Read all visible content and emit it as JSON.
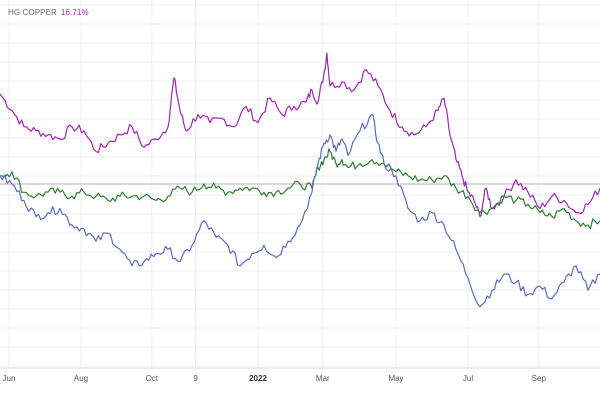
{
  "legend": {
    "symbol": "HG COPPER",
    "value": "16.71%",
    "value_color": "#9c27b0"
  },
  "chart_data": {
    "type": "line",
    "grid": true,
    "legend_placement": "top-left",
    "xlabel": "",
    "ylabel": "",
    "x_ticks": [
      {
        "label": "Jun",
        "t": 0.015,
        "bold": false
      },
      {
        "label": "Aug",
        "t": 0.135,
        "bold": false
      },
      {
        "label": "Oct",
        "t": 0.253,
        "bold": false
      },
      {
        "label": "9",
        "t": 0.326,
        "bold": false
      },
      {
        "label": "2022",
        "t": 0.43,
        "bold": true
      },
      {
        "label": "Mar",
        "t": 0.538,
        "bold": false
      },
      {
        "label": "May",
        "t": 0.66,
        "bold": false
      },
      {
        "label": "Jul",
        "t": 0.78,
        "bold": false
      },
      {
        "label": "Sep",
        "t": 0.898,
        "bold": false
      }
    ],
    "baseline": 0,
    "ylim": [
      -45,
      45
    ],
    "series": [
      {
        "color": "#9c27b0",
        "points": [
          [
            0.0,
            22
          ],
          [
            0.02,
            18
          ],
          [
            0.04,
            14
          ],
          [
            0.06,
            13
          ],
          [
            0.08,
            12
          ],
          [
            0.1,
            11
          ],
          [
            0.12,
            14
          ],
          [
            0.14,
            13
          ],
          [
            0.16,
            8
          ],
          [
            0.18,
            10
          ],
          [
            0.2,
            12
          ],
          [
            0.22,
            14
          ],
          [
            0.24,
            9
          ],
          [
            0.26,
            11
          ],
          [
            0.28,
            14
          ],
          [
            0.29,
            26
          ],
          [
            0.3,
            18
          ],
          [
            0.31,
            13
          ],
          [
            0.33,
            17
          ],
          [
            0.35,
            15
          ],
          [
            0.37,
            16
          ],
          [
            0.39,
            14
          ],
          [
            0.41,
            19
          ],
          [
            0.43,
            15
          ],
          [
            0.45,
            21
          ],
          [
            0.47,
            17
          ],
          [
            0.49,
            19
          ],
          [
            0.51,
            20
          ],
          [
            0.52,
            23
          ],
          [
            0.53,
            20
          ],
          [
            0.54,
            27
          ],
          [
            0.545,
            32
          ],
          [
            0.55,
            24
          ],
          [
            0.57,
            25
          ],
          [
            0.59,
            23
          ],
          [
            0.61,
            28
          ],
          [
            0.63,
            24
          ],
          [
            0.65,
            18
          ],
          [
            0.67,
            14
          ],
          [
            0.69,
            12
          ],
          [
            0.71,
            14
          ],
          [
            0.73,
            18
          ],
          [
            0.74,
            21
          ],
          [
            0.75,
            12
          ],
          [
            0.76,
            6
          ],
          [
            0.77,
            2
          ],
          [
            0.78,
            -2
          ],
          [
            0.79,
            -4
          ],
          [
            0.8,
            -8
          ],
          [
            0.81,
            -1
          ],
          [
            0.82,
            -6
          ],
          [
            0.84,
            -3
          ],
          [
            0.86,
            1
          ],
          [
            0.88,
            -2
          ],
          [
            0.9,
            -6
          ],
          [
            0.92,
            -3
          ],
          [
            0.94,
            -4
          ],
          [
            0.96,
            -7
          ],
          [
            0.98,
            -5
          ],
          [
            1.0,
            -1
          ]
        ]
      },
      {
        "color": "#2e7d32",
        "points": [
          [
            0.0,
            2
          ],
          [
            0.02,
            3
          ],
          [
            0.04,
            -2
          ],
          [
            0.06,
            -3
          ],
          [
            0.08,
            -2
          ],
          [
            0.1,
            -2
          ],
          [
            0.12,
            -3
          ],
          [
            0.14,
            -2
          ],
          [
            0.16,
            -3
          ],
          [
            0.18,
            -4
          ],
          [
            0.2,
            -3
          ],
          [
            0.22,
            -3
          ],
          [
            0.24,
            -3
          ],
          [
            0.26,
            -4
          ],
          [
            0.28,
            -3
          ],
          [
            0.3,
            -1
          ],
          [
            0.32,
            -2
          ],
          [
            0.34,
            0
          ],
          [
            0.36,
            -1
          ],
          [
            0.38,
            -2
          ],
          [
            0.4,
            -1
          ],
          [
            0.42,
            -1
          ],
          [
            0.44,
            -2
          ],
          [
            0.46,
            -2
          ],
          [
            0.48,
            -1
          ],
          [
            0.5,
            0
          ],
          [
            0.52,
            -1
          ],
          [
            0.53,
            4
          ],
          [
            0.54,
            6
          ],
          [
            0.55,
            8
          ],
          [
            0.56,
            5
          ],
          [
            0.57,
            6
          ],
          [
            0.58,
            4
          ],
          [
            0.6,
            5
          ],
          [
            0.62,
            6
          ],
          [
            0.64,
            5
          ],
          [
            0.66,
            3
          ],
          [
            0.68,
            2
          ],
          [
            0.7,
            1
          ],
          [
            0.72,
            1
          ],
          [
            0.74,
            2
          ],
          [
            0.76,
            -1
          ],
          [
            0.78,
            -3
          ],
          [
            0.8,
            -7
          ],
          [
            0.82,
            -6
          ],
          [
            0.84,
            -3
          ],
          [
            0.86,
            -4
          ],
          [
            0.88,
            -5
          ],
          [
            0.9,
            -7
          ],
          [
            0.92,
            -8
          ],
          [
            0.94,
            -6
          ],
          [
            0.96,
            -9
          ],
          [
            0.98,
            -10
          ],
          [
            1.0,
            -9
          ]
        ]
      },
      {
        "color": "#5c6bc0",
        "points": [
          [
            0.0,
            2
          ],
          [
            0.02,
            0
          ],
          [
            0.04,
            -4
          ],
          [
            0.06,
            -8
          ],
          [
            0.08,
            -7
          ],
          [
            0.1,
            -6
          ],
          [
            0.12,
            -10
          ],
          [
            0.14,
            -11
          ],
          [
            0.16,
            -14
          ],
          [
            0.18,
            -12
          ],
          [
            0.2,
            -16
          ],
          [
            0.22,
            -20
          ],
          [
            0.24,
            -19
          ],
          [
            0.26,
            -17
          ],
          [
            0.28,
            -16
          ],
          [
            0.3,
            -19
          ],
          [
            0.32,
            -15
          ],
          [
            0.34,
            -9
          ],
          [
            0.36,
            -13
          ],
          [
            0.38,
            -15
          ],
          [
            0.4,
            -20
          ],
          [
            0.42,
            -17
          ],
          [
            0.44,
            -15
          ],
          [
            0.46,
            -18
          ],
          [
            0.48,
            -14
          ],
          [
            0.5,
            -10
          ],
          [
            0.52,
            -2
          ],
          [
            0.53,
            5
          ],
          [
            0.54,
            10
          ],
          [
            0.55,
            12
          ],
          [
            0.56,
            8
          ],
          [
            0.57,
            11
          ],
          [
            0.58,
            7
          ],
          [
            0.6,
            13
          ],
          [
            0.62,
            17
          ],
          [
            0.63,
            10
          ],
          [
            0.64,
            5
          ],
          [
            0.66,
            2
          ],
          [
            0.68,
            -6
          ],
          [
            0.7,
            -9
          ],
          [
            0.72,
            -7
          ],
          [
            0.74,
            -10
          ],
          [
            0.76,
            -16
          ],
          [
            0.78,
            -23
          ],
          [
            0.8,
            -30
          ],
          [
            0.82,
            -26
          ],
          [
            0.84,
            -22
          ],
          [
            0.86,
            -24
          ],
          [
            0.88,
            -27
          ],
          [
            0.9,
            -25
          ],
          [
            0.92,
            -28
          ],
          [
            0.94,
            -24
          ],
          [
            0.96,
            -20
          ],
          [
            0.98,
            -26
          ],
          [
            1.0,
            -22
          ]
        ]
      }
    ]
  }
}
